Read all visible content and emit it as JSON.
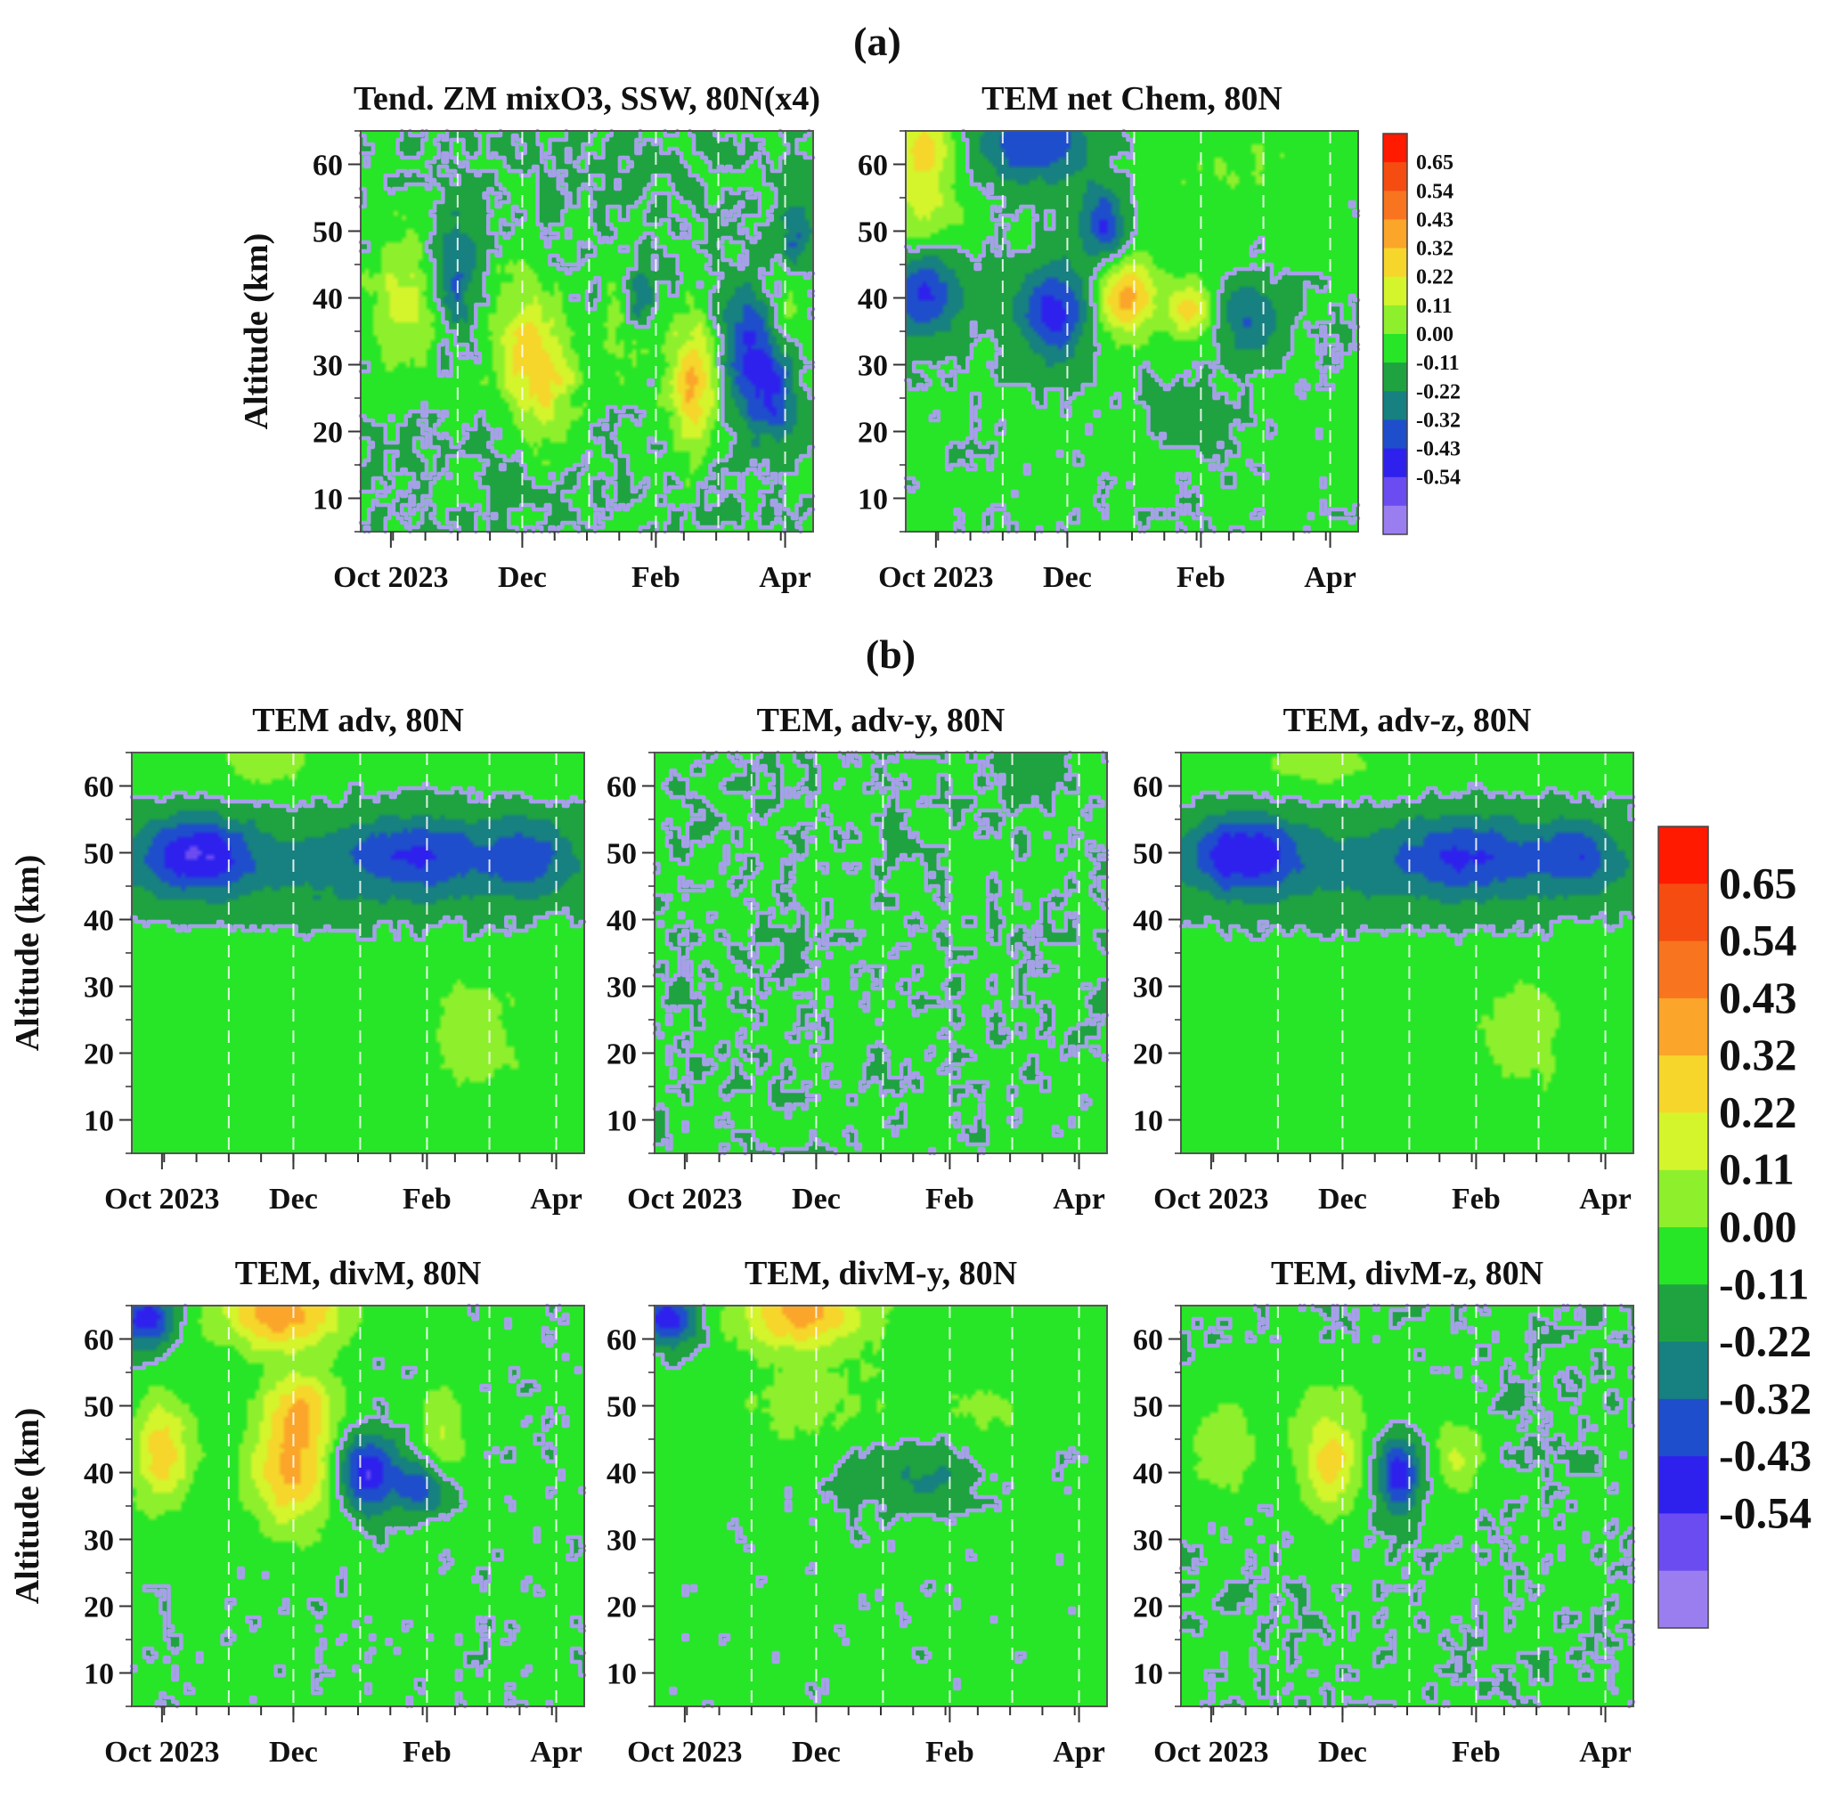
{
  "figure": {
    "section_labels": [
      "(a)",
      "(b)"
    ]
  },
  "chart_data": [
    {
      "id": "a1",
      "type": "heatmap",
      "title": "Tend. ZM mixO3, SSW, 80N(x4)",
      "xlabel": "",
      "ylabel": "Altitude (km)",
      "x_ticks": [
        "Oct 2023",
        "Dec",
        "Feb",
        "Apr"
      ],
      "x_tick_days": [
        0,
        61,
        123,
        183
      ],
      "xlim": [
        -14,
        196
      ],
      "x_minor_step": 15,
      "y_ticks": [
        10,
        20,
        30,
        40,
        50,
        60
      ],
      "ylim": [
        5,
        65
      ],
      "dashed_gridline_days": [
        31,
        61,
        92,
        123,
        152,
        183
      ],
      "base_value": 0.0,
      "noise": 0.06,
      "zero_contour": true,
      "features": [
        {
          "t": 5,
          "z": 40,
          "st": 12,
          "sz": 8,
          "v": 0.25
        },
        {
          "t": 62,
          "z": 32,
          "st": 12,
          "sz": 8,
          "v": 0.28
        },
        {
          "t": 75,
          "z": 28,
          "st": 10,
          "sz": 6,
          "v": 0.22
        },
        {
          "t": 110,
          "z": 38,
          "st": 8,
          "sz": 7,
          "v": 0.18
        },
        {
          "t": 140,
          "z": 27,
          "st": 8,
          "sz": 7,
          "v": 0.45
        },
        {
          "t": 30,
          "z": 44,
          "st": 7,
          "sz": 6,
          "v": -0.28
        },
        {
          "t": 115,
          "z": 40,
          "st": 5,
          "sz": 4,
          "v": -0.3
        },
        {
          "t": 165,
          "z": 32,
          "st": 8,
          "sz": 7,
          "v": -0.32
        },
        {
          "t": 178,
          "z": 26,
          "st": 7,
          "sz": 5,
          "v": -0.3
        },
        {
          "t": 188,
          "z": 50,
          "st": 6,
          "sz": 5,
          "v": -0.22
        },
        {
          "t": 185,
          "z": 40,
          "st": 6,
          "sz": 4,
          "v": 0.14
        }
      ]
    },
    {
      "id": "a2",
      "type": "heatmap",
      "title": "TEM net Chem, 80N",
      "xlabel": "",
      "ylabel": "",
      "x_ticks": [
        "Oct 2023",
        "Dec",
        "Feb",
        "Apr"
      ],
      "x_tick_days": [
        0,
        61,
        123,
        183
      ],
      "xlim": [
        -14,
        196
      ],
      "x_minor_step": 15,
      "y_ticks": [
        10,
        20,
        30,
        40,
        50,
        60
      ],
      "ylim": [
        5,
        65
      ],
      "dashed_gridline_days": [
        31,
        61,
        92,
        123,
        152,
        183
      ],
      "base_value": 0.02,
      "noise": 0.03,
      "zero_contour": true,
      "features": [
        {
          "t": -5,
          "z": 62,
          "st": 10,
          "sz": 4,
          "v": 0.35
        },
        {
          "t": -5,
          "z": 52,
          "st": 12,
          "sz": 4,
          "v": 0.22
        },
        {
          "t": 45,
          "z": 63,
          "st": 18,
          "sz": 4,
          "v": -0.35
        },
        {
          "t": -5,
          "z": 41,
          "st": 12,
          "sz": 5,
          "v": -0.35
        },
        {
          "t": 55,
          "z": 38,
          "st": 12,
          "sz": 5,
          "v": -0.4
        },
        {
          "t": 78,
          "z": 51,
          "st": 8,
          "sz": 4,
          "v": -0.35
        },
        {
          "t": 88,
          "z": 40,
          "st": 10,
          "sz": 4,
          "v": 0.45
        },
        {
          "t": 118,
          "z": 38,
          "st": 8,
          "sz": 3,
          "v": 0.32
        },
        {
          "t": 145,
          "z": 37,
          "st": 10,
          "sz": 4,
          "v": -0.25
        },
        {
          "t": 110,
          "z": 52,
          "st": 18,
          "sz": 6,
          "v": 0.06
        },
        {
          "t": 150,
          "z": 60,
          "st": 25,
          "sz": 5,
          "v": 0.08
        },
        {
          "t": 120,
          "z": 22,
          "st": 12,
          "sz": 3,
          "v": -0.12
        }
      ]
    },
    {
      "id": "b1",
      "type": "heatmap",
      "title": "TEM adv, 80N",
      "xlabel": "",
      "ylabel": "Altitude (km)",
      "x_ticks": [
        "Oct 2023",
        "Dec",
        "Feb",
        "Apr"
      ],
      "x_tick_days": [
        0,
        61,
        123,
        183
      ],
      "xlim": [
        -14,
        196
      ],
      "x_minor_step": 15,
      "y_ticks": [
        10,
        20,
        30,
        40,
        50,
        60
      ],
      "ylim": [
        5,
        65
      ],
      "dashed_gridline_days": [
        31,
        61,
        92,
        123,
        152,
        183
      ],
      "base_value": 0.05,
      "noise": 0.025,
      "zero_contour": true,
      "features": [
        {
          "t": 90,
          "z": 48,
          "st": 110,
          "sz": 6,
          "v": -0.18
        },
        {
          "t": 15,
          "z": 50,
          "st": 18,
          "sz": 4,
          "v": -0.35
        },
        {
          "t": 120,
          "z": 50,
          "st": 25,
          "sz": 4,
          "v": -0.22
        },
        {
          "t": 170,
          "z": 50,
          "st": 12,
          "sz": 4,
          "v": -0.2
        },
        {
          "t": 50,
          "z": 64,
          "st": 15,
          "sz": 3,
          "v": 0.15
        },
        {
          "t": 145,
          "z": 23,
          "st": 15,
          "sz": 6,
          "v": 0.12
        }
      ]
    },
    {
      "id": "b2",
      "type": "heatmap",
      "title": "TEM, adv-y, 80N",
      "xlabel": "",
      "ylabel": "",
      "x_ticks": [
        "Oct 2023",
        "Dec",
        "Feb",
        "Apr"
      ],
      "x_tick_days": [
        0,
        61,
        123,
        183
      ],
      "xlim": [
        -14,
        196
      ],
      "x_minor_step": 15,
      "y_ticks": [
        10,
        20,
        30,
        40,
        50,
        60
      ],
      "ylim": [
        5,
        65
      ],
      "dashed_gridline_days": [
        31,
        61,
        92,
        123,
        152,
        183
      ],
      "base_value": 0.01,
      "noise": 0.03,
      "zero_contour": true,
      "features": [
        {
          "t": 160,
          "z": 63,
          "st": 8,
          "sz": 3,
          "v": -0.12
        }
      ]
    },
    {
      "id": "b3",
      "type": "heatmap",
      "title": "TEM, adv-z, 80N",
      "xlabel": "",
      "ylabel": "",
      "x_ticks": [
        "Oct 2023",
        "Dec",
        "Feb",
        "Apr"
      ],
      "x_tick_days": [
        0,
        61,
        123,
        183
      ],
      "xlim": [
        -14,
        196
      ],
      "x_minor_step": 15,
      "y_ticks": [
        10,
        20,
        30,
        40,
        50,
        60
      ],
      "ylim": [
        5,
        65
      ],
      "dashed_gridline_days": [
        31,
        61,
        92,
        123,
        152,
        183
      ],
      "base_value": 0.05,
      "noise": 0.025,
      "zero_contour": true,
      "features": [
        {
          "t": 90,
          "z": 48,
          "st": 110,
          "sz": 6,
          "v": -0.18
        },
        {
          "t": 15,
          "z": 50,
          "st": 18,
          "sz": 4,
          "v": -0.35
        },
        {
          "t": 120,
          "z": 50,
          "st": 25,
          "sz": 4,
          "v": -0.22
        },
        {
          "t": 170,
          "z": 50,
          "st": 12,
          "sz": 4,
          "v": -0.2
        },
        {
          "t": 50,
          "z": 64,
          "st": 15,
          "sz": 3,
          "v": 0.15
        },
        {
          "t": 145,
          "z": 23,
          "st": 15,
          "sz": 6,
          "v": 0.12
        }
      ]
    },
    {
      "id": "b4",
      "type": "heatmap",
      "title": "TEM, divM, 80N",
      "xlabel": "",
      "ylabel": "Altitude (km)",
      "x_ticks": [
        "Oct 2023",
        "Dec",
        "Feb",
        "Apr"
      ],
      "x_tick_days": [
        0,
        61,
        123,
        183
      ],
      "xlim": [
        -14,
        196
      ],
      "x_minor_step": 15,
      "y_ticks": [
        10,
        20,
        30,
        40,
        50,
        60
      ],
      "ylim": [
        5,
        65
      ],
      "dashed_gridline_days": [
        31,
        61,
        92,
        123,
        152,
        183
      ],
      "base_value": 0.02,
      "noise": 0.03,
      "zero_contour": true,
      "features": [
        {
          "t": -8,
          "z": 63,
          "st": 10,
          "sz": 3,
          "v": -0.4
        },
        {
          "t": 55,
          "z": 64,
          "st": 20,
          "sz": 4,
          "v": 0.5
        },
        {
          "t": 0,
          "z": 43,
          "st": 10,
          "sz": 6,
          "v": 0.35
        },
        {
          "t": 60,
          "z": 40,
          "st": 14,
          "sz": 6,
          "v": 0.42
        },
        {
          "t": 65,
          "z": 50,
          "st": 12,
          "sz": 4,
          "v": 0.32
        },
        {
          "t": 95,
          "z": 40,
          "st": 10,
          "sz": 4,
          "v": -0.45
        },
        {
          "t": 120,
          "z": 38,
          "st": 8,
          "sz": 3,
          "v": -0.3
        },
        {
          "t": 130,
          "z": 46,
          "st": 8,
          "sz": 5,
          "v": 0.2
        }
      ]
    },
    {
      "id": "b5",
      "type": "heatmap",
      "title": "TEM, divM-y, 80N",
      "xlabel": "",
      "ylabel": "",
      "x_ticks": [
        "Oct 2023",
        "Dec",
        "Feb",
        "Apr"
      ],
      "x_tick_days": [
        0,
        61,
        123,
        183
      ],
      "xlim": [
        -14,
        196
      ],
      "x_minor_step": 15,
      "y_ticks": [
        10,
        20,
        30,
        40,
        50,
        60
      ],
      "ylim": [
        5,
        65
      ],
      "dashed_gridline_days": [
        31,
        61,
        92,
        123,
        152,
        183
      ],
      "base_value": 0.03,
      "noise": 0.03,
      "zero_contour": true,
      "features": [
        {
          "t": -8,
          "z": 63,
          "st": 10,
          "sz": 3,
          "v": -0.4
        },
        {
          "t": 55,
          "z": 64,
          "st": 20,
          "sz": 4,
          "v": 0.45
        },
        {
          "t": 100,
          "z": 40,
          "st": 25,
          "sz": 4,
          "v": -0.12
        },
        {
          "t": 120,
          "z": 39,
          "st": 10,
          "sz": 3,
          "v": -0.08
        },
        {
          "t": 60,
          "z": 50,
          "st": 30,
          "sz": 6,
          "v": 0.1
        },
        {
          "t": 140,
          "z": 50,
          "st": 15,
          "sz": 5,
          "v": 0.1
        }
      ]
    },
    {
      "id": "b6",
      "type": "heatmap",
      "title": "TEM, divM-z, 80N",
      "xlabel": "",
      "ylabel": "",
      "x_ticks": [
        "Oct 2023",
        "Dec",
        "Feb",
        "Apr"
      ],
      "x_tick_days": [
        0,
        61,
        123,
        183
      ],
      "xlim": [
        -14,
        196
      ],
      "x_minor_step": 15,
      "y_ticks": [
        10,
        20,
        30,
        40,
        50,
        60
      ],
      "ylim": [
        5,
        65
      ],
      "dashed_gridline_days": [
        31,
        61,
        92,
        123,
        152,
        183
      ],
      "base_value": 0.01,
      "noise": 0.025,
      "zero_contour": true,
      "features": [
        {
          "t": 5,
          "z": 43,
          "st": 12,
          "sz": 5,
          "v": 0.18
        },
        {
          "t": 55,
          "z": 41,
          "st": 10,
          "sz": 5,
          "v": 0.35
        },
        {
          "t": 87,
          "z": 40,
          "st": 7,
          "sz": 4,
          "v": -0.4
        },
        {
          "t": 115,
          "z": 42,
          "st": 8,
          "sz": 4,
          "v": 0.22
        },
        {
          "t": 60,
          "z": 50,
          "st": 30,
          "sz": 5,
          "v": 0.08
        }
      ]
    },
    {
      "id": "colorbar_a",
      "type": "colorbar",
      "levels": [
        "0.65",
        "0.54",
        "0.43",
        "0.32",
        "0.22",
        "0.11",
        "0.00",
        "-0.11",
        "-0.22",
        "-0.32",
        "-0.43",
        "-0.54"
      ],
      "colors": [
        "#ff1a00",
        "#f54c12",
        "#f8741e",
        "#fba52a",
        "#f6d62b",
        "#d4f52c",
        "#8ef02c",
        "#27e627",
        "#1fa340",
        "#178080",
        "#1f4ecc",
        "#2e21ee",
        "#6b4cf0",
        "#9a7ef0"
      ]
    },
    {
      "id": "colorbar_b",
      "type": "colorbar",
      "levels": [
        "0.65",
        "0.54",
        "0.43",
        "0.32",
        "0.22",
        "0.11",
        "0.00",
        "-0.11",
        "-0.22",
        "-0.32",
        "-0.43",
        "-0.54"
      ],
      "colors": [
        "#ff1a00",
        "#f54c12",
        "#f8741e",
        "#fba52a",
        "#f6d62b",
        "#d4f52c",
        "#8ef02c",
        "#27e627",
        "#1fa340",
        "#178080",
        "#1f4ecc",
        "#2e21ee",
        "#6b4cf0",
        "#9a7ef0"
      ]
    }
  ]
}
